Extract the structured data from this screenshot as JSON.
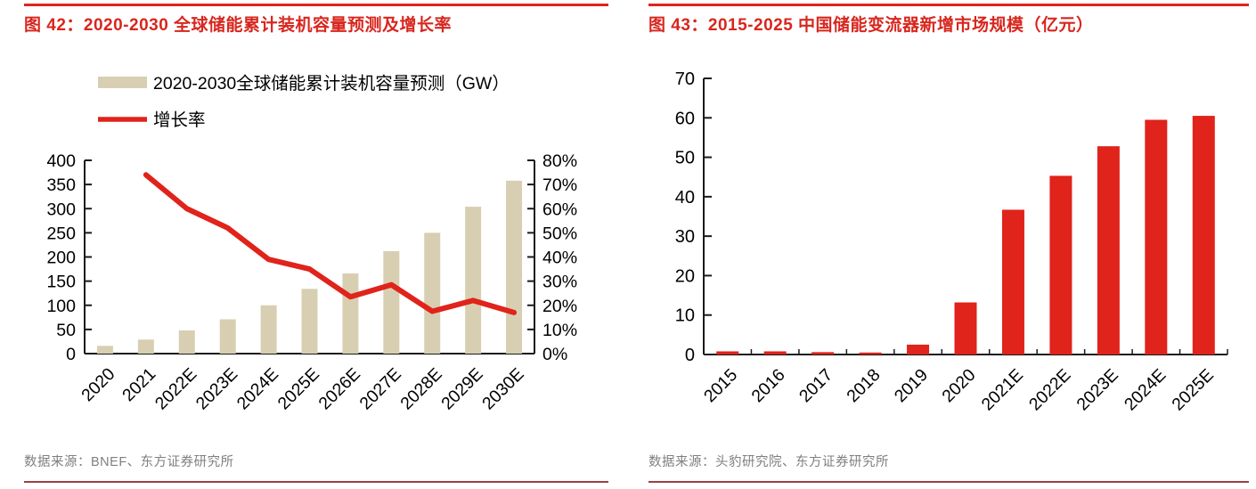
{
  "theme": {
    "accent_red": "#e0241c",
    "title_red": "#d8261e",
    "rule_dark_red": "#9c3f44",
    "source_gray": "#7f7f7f",
    "axis_black": "#1a1a1a"
  },
  "panels": [
    {
      "title": "图 42：2020-2030 全球储能累计装机容量预测及增长率",
      "source": "数据来源：BNEF、东方证券研究所"
    },
    {
      "title": "图 43：2015-2025 中国储能变流器新增市场规模（亿元）",
      "source": "数据来源：头豹研究院、东方证券研究所"
    }
  ],
  "chart_data": [
    {
      "type": "bar+line",
      "title": "2020-2030 全球储能累计装机容量预测及增长率",
      "categories": [
        "2020",
        "2021",
        "2022E",
        "2023E",
        "2024E",
        "2025E",
        "2026E",
        "2027E",
        "2028E",
        "2029E",
        "2030E"
      ],
      "series": [
        {
          "name": "2020-2030全球储能累计装机容量预测（GW）",
          "type": "bar",
          "axis": "left",
          "color": "#d8cfb2",
          "values": [
            16,
            29,
            48,
            71,
            100,
            134,
            166,
            212,
            250,
            304,
            358
          ]
        },
        {
          "name": "增长率",
          "type": "line",
          "axis": "right",
          "color": "#e0231b",
          "values": [
            null,
            74,
            60,
            52,
            39,
            35,
            23.5,
            28.5,
            17.5,
            22,
            17
          ]
        }
      ],
      "left_axis": {
        "min": 0,
        "max": 400,
        "step": 50
      },
      "right_axis": {
        "min": 0,
        "max": 80,
        "step": 10,
        "format": "percent",
        "tick_labels": [
          "0%",
          "10%",
          "20%",
          "30%",
          "40%",
          "50%",
          "60%",
          "70%",
          "80%"
        ]
      },
      "legend_position": "top-left",
      "grid": false
    },
    {
      "type": "bar",
      "title": "2015-2025 中国储能变流器新增市场规模（亿元）",
      "categories": [
        "2015",
        "2016",
        "2017",
        "2018",
        "2019",
        "2020",
        "2021E",
        "2022E",
        "2023E",
        "2024E",
        "2025E"
      ],
      "values": [
        0.8,
        0.8,
        0.6,
        0.5,
        2.5,
        13.2,
        36.7,
        45.3,
        52.8,
        59.5,
        60.5
      ],
      "bar_color": "#e0231b",
      "ylabel": "",
      "xlabel": "",
      "ylim": [
        0,
        70
      ],
      "ystep": 10,
      "grid": false
    }
  ]
}
